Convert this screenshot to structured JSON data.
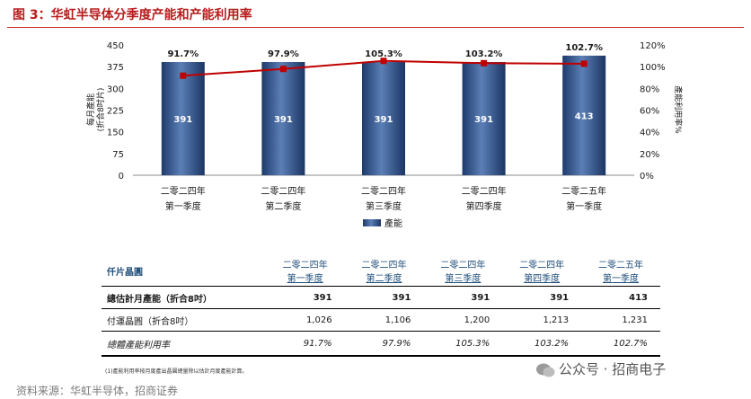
{
  "figure_title": "图 3：华虹半导体分季度产能和产能利用率",
  "chart_data": {
    "type": "bar",
    "categories": [
      [
        "二零二四年",
        "第一季度"
      ],
      [
        "二零二四年",
        "第二季度"
      ],
      [
        "二零二四年",
        "第三季度"
      ],
      [
        "二零二四年",
        "第四季度"
      ],
      [
        "二零二五年",
        "第一季度"
      ]
    ],
    "series": [
      {
        "name": "產能",
        "type": "bar",
        "axis": "left",
        "values": [
          391,
          391,
          391,
          391,
          413
        ],
        "color": "#2f4f86"
      },
      {
        "type": "line",
        "axis": "right",
        "values": [
          91.7,
          97.9,
          105.3,
          103.2,
          102.7
        ],
        "color": "#c00000"
      }
    ],
    "bar_labels": [
      "391",
      "391",
      "391",
      "391",
      "413"
    ],
    "line_labels": [
      "91.7%",
      "97.9%",
      "105.3%",
      "103.2%",
      "102.7%"
    ],
    "ylabel_left": [
      "每月產能",
      "(折合8吋片)"
    ],
    "ylabel_right": "產能利用率%",
    "ylim_left": [
      0,
      450
    ],
    "yticks_left": [
      "0",
      "75",
      "150",
      "225",
      "300",
      "375",
      "450"
    ],
    "ylim_right": [
      0,
      120
    ],
    "yticks_right": [
      "0%",
      "20%",
      "40%",
      "60%",
      "80%",
      "100%",
      "120%"
    ],
    "legend_label": "產能",
    "legend_position": "bottom-center",
    "grid": false
  },
  "table": {
    "corner": "仟片晶圓",
    "columns": [
      [
        "二零二四年",
        "第一季度"
      ],
      [
        "二零二四年",
        "第二季度"
      ],
      [
        "二零二四年",
        "第三季度"
      ],
      [
        "二零二四年",
        "第四季度"
      ],
      [
        "二零二五年",
        "第一季度"
      ]
    ],
    "rows": [
      {
        "label": "總估計月產能（折合8吋）",
        "values": [
          "391",
          "391",
          "391",
          "391",
          "413"
        ]
      },
      {
        "label": "付運晶圓（折合8吋）",
        "values": [
          "1,026",
          "1,106",
          "1,200",
          "1,213",
          "1,231"
        ]
      },
      {
        "label": "總體產能利用率",
        "values": [
          "91.7%",
          "97.9%",
          "105.3%",
          "103.2%",
          "102.7%"
        ]
      }
    ]
  },
  "footnote": "(1)產能利用率按月度產出晶圓總量除以估計月度產能計算。",
  "source": "资料来源：华虹半导体，招商证券",
  "watermark": "公众号 · 招商电子"
}
